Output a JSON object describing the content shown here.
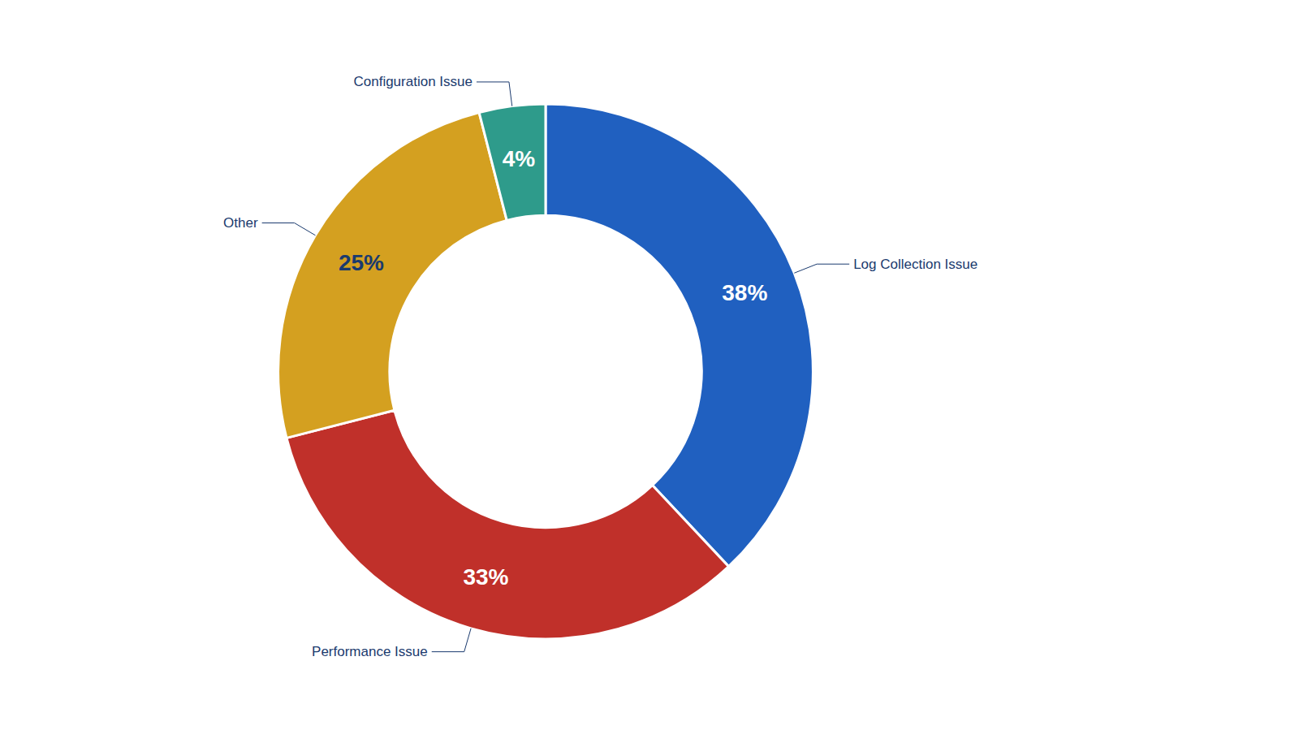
{
  "chart_data": {
    "type": "pie",
    "categories": [
      "Log Collection Issue",
      "Performance Issue",
      "Other",
      "Configuration Issue"
    ],
    "values": [
      38,
      33,
      25,
      4
    ],
    "value_labels": [
      "38%",
      "33%",
      "25%",
      "4%"
    ],
    "colors": [
      "#2060C0",
      "#C0302A",
      "#D4A020",
      "#2E9B8B"
    ],
    "data_labels": true
  }
}
